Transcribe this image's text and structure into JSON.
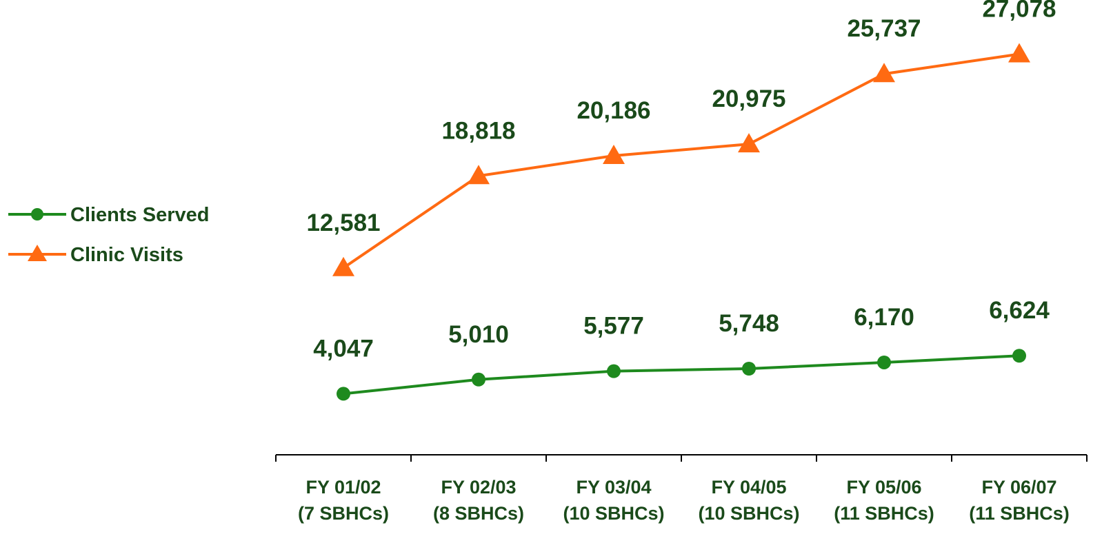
{
  "chart_data": {
    "type": "line",
    "categories": [
      "FY 01/02\n(7 SBHCs)",
      "FY 02/03\n(8 SBHCs)",
      "FY 03/04\n(10 SBHCs)",
      "FY 04/05\n(10 SBHCs)",
      "FY 05/06\n(11 SBHCs)",
      "FY 06/07\n(11 SBHCs)"
    ],
    "series": [
      {
        "name": "Clients Served",
        "color": "#1e8a1e",
        "marker": "circle",
        "values": [
          4047,
          5010,
          5577,
          5748,
          6170,
          6624
        ],
        "value_labels": [
          "4,047",
          "5,010",
          "5,577",
          "5,748",
          "6,170",
          "6,624"
        ]
      },
      {
        "name": "Clinic Visits",
        "color": "#ff6a12",
        "marker": "triangle",
        "values": [
          12581,
          18818,
          20186,
          20975,
          25737,
          27078
        ],
        "value_labels": [
          "12,581",
          "18,818",
          "20,186",
          "20,975",
          "25,737",
          "27,078"
        ]
      }
    ],
    "ylim": [
      0,
      30000
    ],
    "legend": "left"
  }
}
